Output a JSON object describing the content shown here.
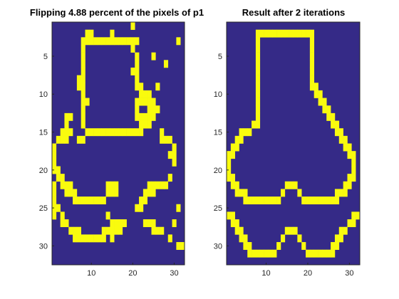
{
  "figure": {
    "panels": [
      {
        "title": "Flipping 4.88 percent of the pixels of p1"
      },
      {
        "title": "Result after 2 iterations"
      }
    ]
  },
  "chart_data": [
    {
      "type": "heatmap",
      "title": "Flipping 4.88 percent of the pixels of p1",
      "xlim": [
        0.5,
        32.5
      ],
      "ylim": [
        0.5,
        32.5
      ],
      "y_reversed": true,
      "xticks": [
        10,
        20,
        30
      ],
      "yticks": [
        5,
        10,
        15,
        20,
        25,
        30
      ],
      "colormap": {
        "0": "#352a87",
        "1": "#f9fb0e"
      },
      "rows": [
        "00000000000000000001000000000000",
        "00000000110000100000000000000000",
        "00000001111111111111100000000010",
        "00000001000000000001000000000000",
        "00000001000000000000100010000000",
        "00000001000000000000100000010000",
        "00000001000000000001100000000000",
        "00000011000000000000100000000000",
        "00000011000000000000110001000000",
        "00000001000000000000011100000000",
        "00000001100000000000111110000000",
        "00000001000000000000100111000000",
        "00011001000000000000111110000000",
        "00010001000000000000011100000000",
        "00111000111111111111110000100000",
        "01110011000000000000000000111000",
        "10000000000000000000000000000100",
        "10000000000000000000000000001100",
        "10000000000000000000000000000100",
        "11000000000000000000000000000000",
        "01100000000000000000000000001000",
        "10111000000001110000000111110000",
        "10011100000001110000001110000000",
        "10000111111110000000011000000000",
        "11000000000000000000110000000010",
        "10100000000001000000000000000000",
        "00110000000000111100001110000100",
        "00001110000011111000000011100000",
        "00000111111110100000000000001000",
        "00000000000000000000000000000011",
        "00000000000000000000000000000000",
        "00000000000000000000000000000000"
      ]
    },
    {
      "type": "heatmap",
      "title": "Result after 2 iterations",
      "xlim": [
        0.5,
        32.5
      ],
      "ylim": [
        0.5,
        32.5
      ],
      "y_reversed": true,
      "xticks": [
        10,
        20,
        30
      ],
      "yticks": [
        5,
        10,
        15,
        20,
        25,
        30
      ],
      "colormap": {
        "0": "#352a87",
        "1": "#f9fb0e"
      },
      "rows": [
        "00000000000000000000000000000000",
        "00000001111111111111100000000000",
        "00000001000000000000100000000000",
        "00000001000000000000100000000000",
        "00000001000000000000100000000000",
        "00000001000000000000100000000000",
        "00000001000000000000100000000000",
        "00000001000000000000100000000000",
        "00000001000000000000110000000000",
        "00000001000000000000011000000000",
        "00000001000000000000001100000000",
        "00000001000000000000000110000000",
        "00000001000000000000000011000000",
        "00000011000000000000000001100000",
        "00011100000000000000000000110000",
        "00110000000000000000000000011000",
        "01100000000000000000000000001100",
        "11000000000000000000000000000110",
        "10000000000000000000000000000010",
        "10000000000000000000000000000010",
        "11000000000000000000000000000110",
        "01100000000000111000000000001100",
        "00111000000001000100000000111000",
        "00001111111110000011111111100000",
        "00000000000000000000000000000000",
        "11000000000000000000000000000011",
        "01100000000000000000000000000110",
        "00110000000000111000000000011000",
        "00011000000001000100000000110000",
        "00001100000010000010000001100000",
        "00000111111100000001111111000000",
        "00000000000000000000000000000000"
      ]
    }
  ]
}
